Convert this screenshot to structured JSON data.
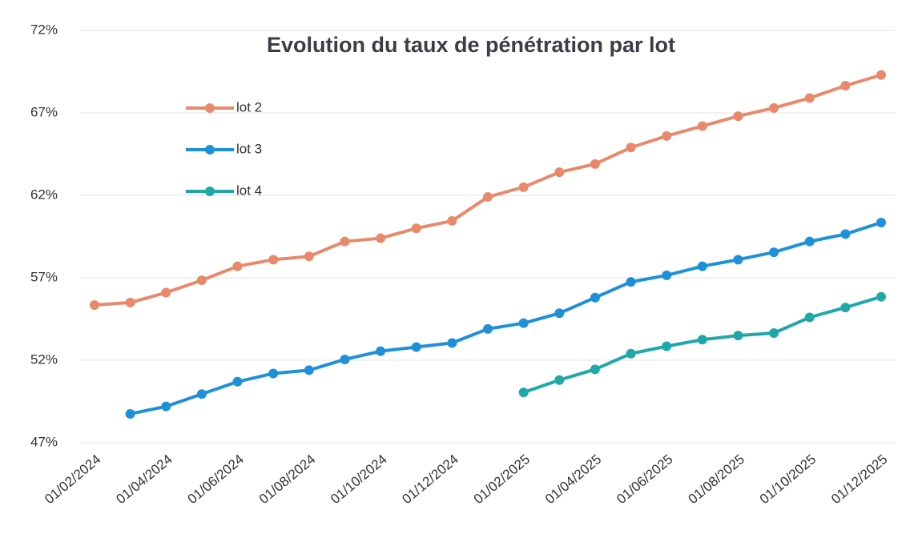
{
  "chart_data": {
    "type": "line",
    "title": "Evolution du taux de pénétration par lot",
    "categories": [
      "01/02/2024",
      null,
      "01/04/2024",
      null,
      "01/06/2024",
      null,
      "01/08/2024",
      null,
      "01/10/2024",
      null,
      "01/12/2024",
      null,
      "01/02/2025",
      null,
      "01/04/2025",
      null,
      "01/06/2025",
      null,
      "01/08/2025",
      null,
      "01/10/2025",
      null,
      "01/12/2025"
    ],
    "series": [
      {
        "name": "lot 2",
        "color": "#e8896b",
        "values": [
          55.35,
          55.5,
          56.1,
          56.85,
          57.7,
          58.1,
          58.3,
          59.2,
          59.4,
          60.0,
          60.45,
          61.9,
          62.5,
          63.4,
          63.9,
          64.9,
          65.6,
          66.2,
          66.8,
          67.3,
          67.9,
          68.65,
          69.3
        ]
      },
      {
        "name": "lot 3",
        "color": "#1e90d8",
        "values": [
          null,
          48.75,
          49.2,
          49.95,
          50.7,
          51.2,
          51.4,
          52.05,
          52.55,
          52.8,
          53.05,
          53.9,
          54.25,
          54.85,
          55.8,
          56.75,
          57.15,
          57.7,
          58.1,
          58.55,
          59.2,
          59.65,
          60.35
        ]
      },
      {
        "name": "lot 4",
        "color": "#20a8a8",
        "values": [
          null,
          null,
          null,
          null,
          null,
          null,
          null,
          null,
          null,
          null,
          null,
          null,
          50.05,
          50.8,
          51.45,
          52.4,
          52.85,
          53.25,
          53.5,
          53.65,
          54.6,
          55.2,
          55.85
        ]
      }
    ],
    "ylim": [
      47,
      72
    ],
    "yticks": [
      {
        "value": 47,
        "label": "47%"
      },
      {
        "value": 52,
        "label": "52%"
      },
      {
        "value": 57,
        "label": "57%"
      },
      {
        "value": 62,
        "label": "62%"
      },
      {
        "value": 67,
        "label": "67%"
      },
      {
        "value": 72,
        "label": "72%"
      }
    ],
    "grid": true,
    "legend": "upper left"
  }
}
